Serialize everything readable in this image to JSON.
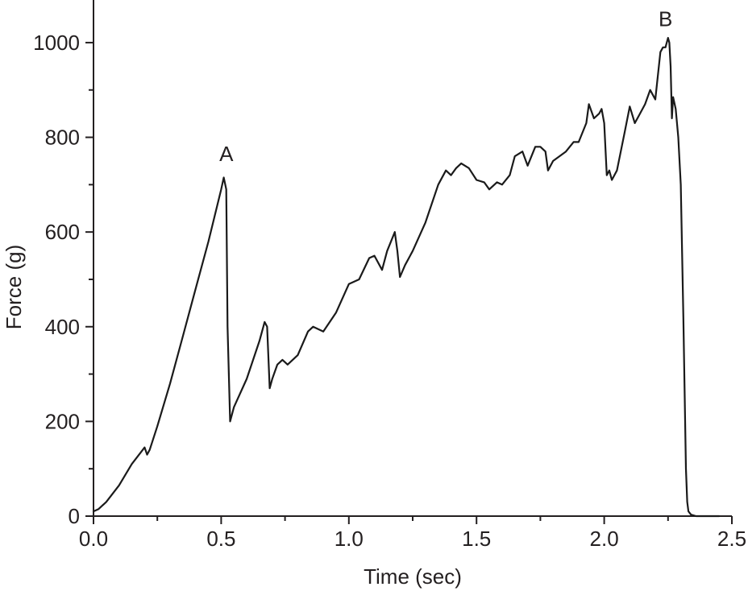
{
  "chart_data": {
    "type": "line",
    "title": "",
    "xlabel": "Time (sec)",
    "ylabel": "Force (g)",
    "xlim": [
      0,
      2.5
    ],
    "ylim": [
      0,
      1090
    ],
    "xticks": [
      0.0,
      0.5,
      1.0,
      1.5,
      2.0,
      2.5
    ],
    "xtick_labels": [
      "0.0",
      "0.5",
      "1.0",
      "1.5",
      "2.0",
      "2.5"
    ],
    "yticks": [
      0,
      200,
      400,
      600,
      800,
      1000
    ],
    "ytick_labels": [
      "0",
      "200",
      "400",
      "600",
      "800",
      "1000"
    ],
    "grid": false,
    "line_color": "#1a1a1a",
    "annotations": [
      {
        "label": "A",
        "x": 0.52,
        "y": 750
      },
      {
        "label": "B",
        "x": 2.24,
        "y": 1035
      }
    ],
    "series": [
      {
        "x": [
          0.0,
          0.02,
          0.05,
          0.1,
          0.15,
          0.2,
          0.21,
          0.22,
          0.25,
          0.3,
          0.35,
          0.4,
          0.45,
          0.5,
          0.51,
          0.52,
          0.525,
          0.535,
          0.55,
          0.6,
          0.65,
          0.67,
          0.68,
          0.69,
          0.7,
          0.72,
          0.74,
          0.76,
          0.8,
          0.84,
          0.86,
          0.9,
          0.95,
          1.0,
          1.04,
          1.08,
          1.1,
          1.13,
          1.15,
          1.18,
          1.19,
          1.2,
          1.22,
          1.25,
          1.3,
          1.35,
          1.38,
          1.4,
          1.42,
          1.44,
          1.47,
          1.5,
          1.53,
          1.55,
          1.58,
          1.6,
          1.63,
          1.65,
          1.68,
          1.7,
          1.73,
          1.75,
          1.77,
          1.78,
          1.8,
          1.85,
          1.88,
          1.9,
          1.93,
          1.94,
          1.96,
          1.98,
          1.99,
          2.0,
          2.01,
          2.02,
          2.03,
          2.05,
          2.08,
          2.1,
          2.12,
          2.14,
          2.16,
          2.18,
          2.2,
          2.22,
          2.23,
          2.24,
          2.25,
          2.255,
          2.26,
          2.265,
          2.27,
          2.28,
          2.29,
          2.3,
          2.31,
          2.32,
          2.325,
          2.33,
          2.34,
          2.36,
          2.38,
          2.4,
          2.45
        ],
        "y": [
          10,
          15,
          30,
          65,
          110,
          145,
          130,
          140,
          190,
          280,
          380,
          480,
          580,
          690,
          715,
          690,
          400,
          200,
          230,
          290,
          370,
          410,
          400,
          270,
          290,
          320,
          330,
          320,
          340,
          390,
          400,
          390,
          430,
          490,
          500,
          545,
          550,
          520,
          560,
          600,
          560,
          505,
          530,
          560,
          620,
          700,
          730,
          720,
          735,
          745,
          735,
          710,
          705,
          690,
          705,
          700,
          720,
          760,
          770,
          740,
          780,
          780,
          770,
          730,
          750,
          770,
          790,
          790,
          830,
          870,
          840,
          850,
          860,
          830,
          720,
          730,
          710,
          730,
          810,
          865,
          830,
          850,
          870,
          900,
          880,
          980,
          990,
          990,
          1010,
          1000,
          950,
          840,
          885,
          860,
          800,
          700,
          420,
          100,
          30,
          10,
          3,
          0,
          0,
          0,
          0
        ]
      }
    ]
  }
}
